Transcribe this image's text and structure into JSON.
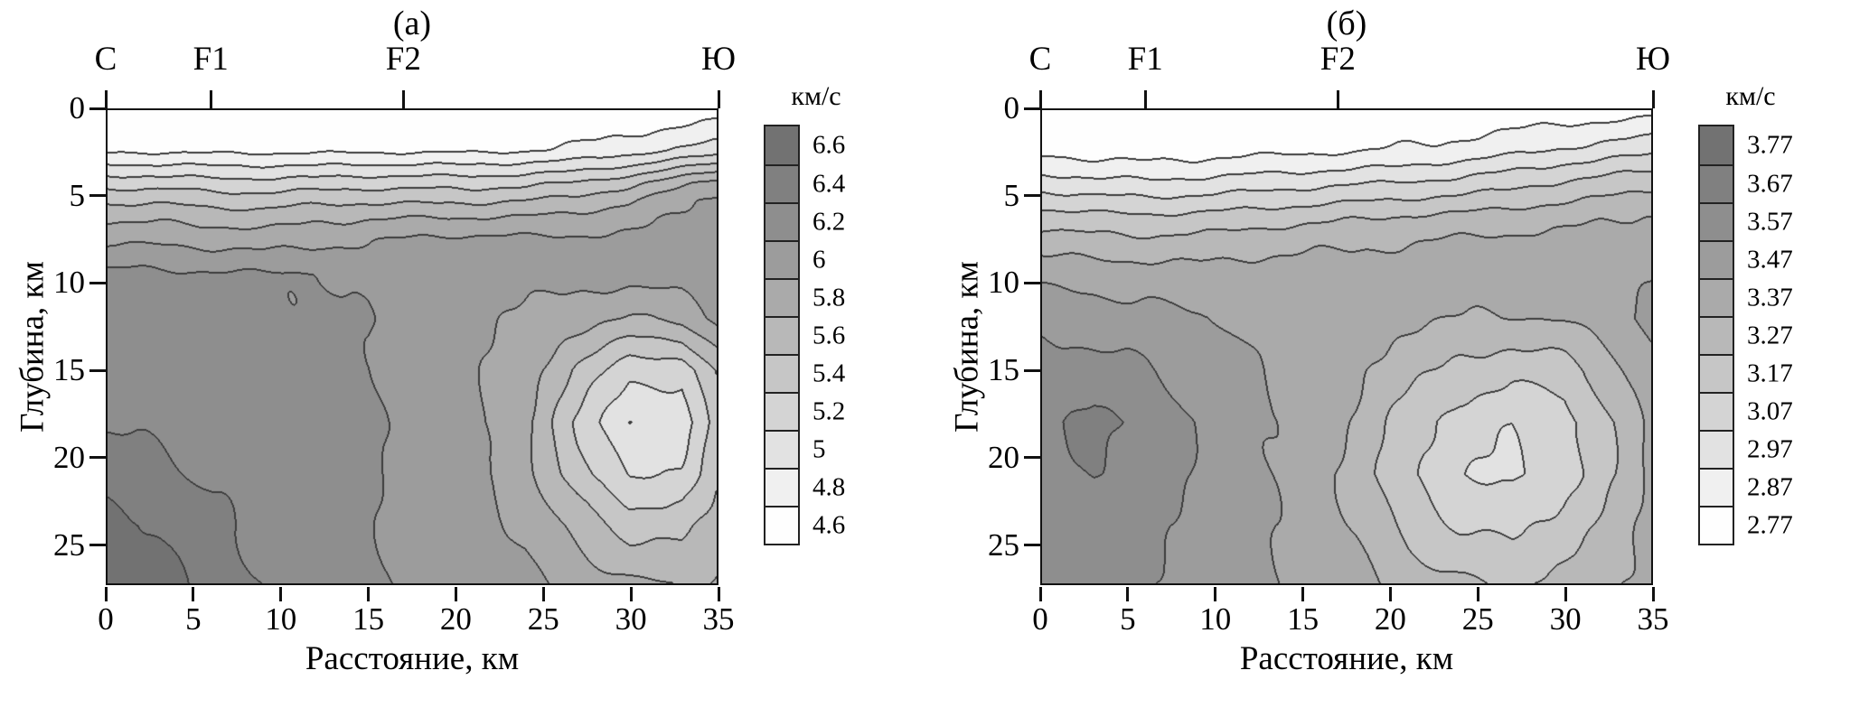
{
  "style": {
    "background": "#ffffff",
    "gray_start": 254,
    "gray_step": 14,
    "line_color": "#3d3d3d",
    "axis_color": "#111111",
    "text_color": "#000000"
  },
  "chart_data": [
    {
      "type": "contour",
      "title": "(а)",
      "xlabel": "Расстояние, км",
      "ylabel": "Глубина, км",
      "colorbar_label": "км/с",
      "xlim": [
        0,
        35
      ],
      "depth_lim": [
        0,
        27.3
      ],
      "xticks": [
        0,
        5,
        10,
        15,
        20,
        25,
        30,
        35
      ],
      "yticks": [
        0,
        5,
        10,
        15,
        20,
        25
      ],
      "top_markers": [
        {
          "label": "С",
          "x": 0
        },
        {
          "label": "F1",
          "x": 6
        },
        {
          "label": "F2",
          "x": 17
        },
        {
          "label": "Ю",
          "x": 35
        }
      ],
      "levels": [
        "4.6",
        "4.8",
        "5",
        "5.2",
        "5.4",
        "5.6",
        "5.8",
        "6",
        "6.2",
        "6.4",
        "6.6"
      ],
      "vmin": 4.6,
      "vstep": 0.2,
      "grid": {
        "x": [
          0,
          3,
          6,
          9,
          12,
          15,
          18,
          21,
          24,
          27,
          30,
          33,
          35
        ],
        "depth": [
          0,
          2.3,
          3.2,
          4.2,
          5.2,
          6.2,
          7.5,
          9.5,
          12,
          15,
          18,
          21,
          24,
          27.3
        ],
        "values": [
          [
            4.55,
            4.55,
            4.55,
            4.55,
            4.55,
            4.55,
            4.55,
            4.55,
            4.55,
            4.57,
            4.6,
            4.66,
            4.7
          ],
          [
            4.76,
            4.76,
            4.75,
            4.75,
            4.75,
            4.76,
            4.76,
            4.76,
            4.78,
            4.84,
            4.92,
            5.02,
            5.08
          ],
          [
            5.02,
            5.02,
            5.0,
            5.0,
            5.0,
            5.02,
            5.02,
            5.02,
            5.05,
            5.1,
            5.2,
            5.36,
            5.46
          ],
          [
            5.32,
            5.32,
            5.28,
            5.27,
            5.3,
            5.32,
            5.32,
            5.32,
            5.35,
            5.42,
            5.54,
            5.74,
            5.88
          ],
          [
            5.56,
            5.56,
            5.52,
            5.5,
            5.55,
            5.56,
            5.56,
            5.56,
            5.6,
            5.66,
            5.78,
            5.96,
            6.04
          ],
          [
            5.76,
            5.76,
            5.72,
            5.7,
            5.76,
            5.78,
            5.8,
            5.8,
            5.82,
            5.86,
            5.92,
            6.02,
            6.08
          ],
          [
            5.97,
            5.96,
            5.93,
            5.91,
            5.95,
            5.98,
            6.04,
            6.05,
            6.04,
            6.04,
            6.04,
            6.08,
            6.11
          ],
          [
            6.26,
            6.24,
            6.23,
            6.22,
            6.22,
            6.12,
            6.06,
            6.05,
            6.07,
            6.08,
            6.08,
            6.1,
            6.12
          ],
          [
            6.3,
            6.28,
            6.26,
            6.24,
            6.23,
            6.21,
            6.07,
            6.05,
            5.97,
            5.88,
            5.78,
            5.86,
            6.04
          ],
          [
            6.33,
            6.31,
            6.28,
            6.25,
            6.24,
            6.22,
            6.08,
            6.04,
            5.9,
            5.56,
            5.28,
            5.26,
            5.62
          ],
          [
            6.38,
            6.34,
            6.3,
            6.26,
            6.24,
            6.23,
            6.08,
            6.04,
            5.84,
            5.38,
            4.97,
            5.08,
            5.52
          ],
          [
            6.52,
            6.46,
            6.36,
            6.28,
            6.25,
            6.23,
            6.09,
            6.05,
            5.88,
            5.48,
            5.18,
            5.24,
            5.54
          ],
          [
            6.68,
            6.58,
            6.46,
            6.34,
            6.26,
            6.24,
            6.1,
            6.06,
            5.97,
            5.73,
            5.52,
            5.53,
            5.67
          ],
          [
            6.74,
            6.66,
            6.52,
            6.4,
            6.28,
            6.24,
            6.11,
            6.07,
            6.04,
            5.93,
            5.83,
            5.78,
            5.84
          ]
        ]
      }
    },
    {
      "type": "contour",
      "title": "(б)",
      "xlabel": "Расстояние, км",
      "ylabel": "Глубина, км",
      "colorbar_label": "км/с",
      "xlim": [
        0,
        35
      ],
      "depth_lim": [
        0,
        27.3
      ],
      "xticks": [
        0,
        5,
        10,
        15,
        20,
        25,
        30,
        35
      ],
      "yticks": [
        0,
        5,
        10,
        15,
        20,
        25
      ],
      "top_markers": [
        {
          "label": "С",
          "x": 0
        },
        {
          "label": "F1",
          "x": 6
        },
        {
          "label": "F2",
          "x": 17
        },
        {
          "label": "Ю",
          "x": 35
        }
      ],
      "levels": [
        "2.77",
        "2.87",
        "2.97",
        "3.07",
        "3.17",
        "3.27",
        "3.37",
        "3.47",
        "3.57",
        "3.67",
        "3.77"
      ],
      "vmin": 2.77,
      "vstep": 0.1,
      "grid": {
        "x": [
          0,
          3,
          6,
          9,
          12,
          15,
          18,
          21,
          24,
          27,
          30,
          33,
          35
        ],
        "depth": [
          0,
          2.3,
          3.2,
          4.2,
          5.2,
          6.2,
          7.5,
          9.5,
          12,
          15,
          18,
          21,
          24,
          27.3
        ],
        "values": [
          [
            2.78,
            2.78,
            2.78,
            2.78,
            2.78,
            2.78,
            2.78,
            2.78,
            2.79,
            2.8,
            2.81,
            2.82,
            2.83
          ],
          [
            2.84,
            2.83,
            2.82,
            2.83,
            2.84,
            2.85,
            2.86,
            2.88,
            2.9,
            2.94,
            2.98,
            3.02,
            3.04
          ],
          [
            2.92,
            2.9,
            2.89,
            2.9,
            2.92,
            2.93,
            2.95,
            2.97,
            3.0,
            3.04,
            3.08,
            3.12,
            3.14
          ],
          [
            3.02,
            3.0,
            2.99,
            3.0,
            3.02,
            3.04,
            3.06,
            3.08,
            3.1,
            3.14,
            3.18,
            3.22,
            3.24
          ],
          [
            3.12,
            3.1,
            3.09,
            3.1,
            3.12,
            3.14,
            3.16,
            3.18,
            3.2,
            3.23,
            3.26,
            3.29,
            3.31
          ],
          [
            3.22,
            3.2,
            3.19,
            3.2,
            3.22,
            3.24,
            3.26,
            3.28,
            3.3,
            3.32,
            3.34,
            3.36,
            3.38
          ],
          [
            3.32,
            3.3,
            3.29,
            3.3,
            3.32,
            3.34,
            3.35,
            3.36,
            3.38,
            3.39,
            3.4,
            3.42,
            3.43
          ],
          [
            3.44,
            3.43,
            3.42,
            3.41,
            3.42,
            3.42,
            3.42,
            3.43,
            3.43,
            3.43,
            3.44,
            3.45,
            3.46
          ],
          [
            3.54,
            3.52,
            3.5,
            3.48,
            3.45,
            3.43,
            3.41,
            3.39,
            3.37,
            3.36,
            3.38,
            3.44,
            3.49
          ],
          [
            3.62,
            3.61,
            3.58,
            3.52,
            3.48,
            3.44,
            3.38,
            3.31,
            3.24,
            3.2,
            3.22,
            3.35,
            3.45
          ],
          [
            3.65,
            3.69,
            3.65,
            3.56,
            3.5,
            3.45,
            3.36,
            3.22,
            3.12,
            3.08,
            3.12,
            3.28,
            3.41
          ],
          [
            3.64,
            3.68,
            3.64,
            3.55,
            3.49,
            3.44,
            3.34,
            3.18,
            3.08,
            3.05,
            3.12,
            3.28,
            3.38
          ],
          [
            3.62,
            3.64,
            3.6,
            3.54,
            3.48,
            3.44,
            3.36,
            3.24,
            3.16,
            3.14,
            3.21,
            3.32,
            3.39
          ],
          [
            3.6,
            3.62,
            3.59,
            3.54,
            3.5,
            3.46,
            3.41,
            3.33,
            3.28,
            3.26,
            3.31,
            3.36,
            3.41
          ]
        ]
      }
    }
  ]
}
